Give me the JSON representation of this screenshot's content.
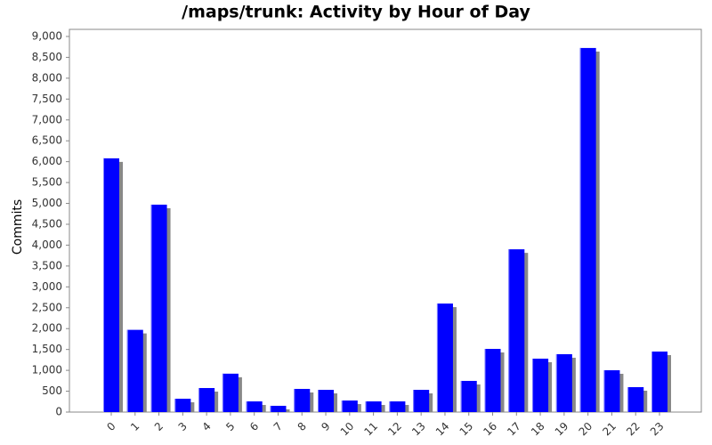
{
  "chart_data": {
    "type": "bar",
    "title": "/maps/trunk: Activity by Hour of Day",
    "y_label": "Commits",
    "categories": [
      "0",
      "1",
      "2",
      "3",
      "4",
      "5",
      "6",
      "7",
      "8",
      "9",
      "10",
      "11",
      "12",
      "13",
      "14",
      "15",
      "16",
      "17",
      "18",
      "19",
      "20",
      "21",
      "22",
      "23"
    ],
    "values": [
      6080,
      1970,
      4970,
      320,
      576,
      920,
      256,
      150,
      555,
      533,
      277,
      256,
      256,
      533,
      2600,
      747,
      1514,
      3900,
      1280,
      1387,
      8724,
      1002,
      597,
      1450
    ],
    "color": "#0000ff",
    "shadow_color": "#888888",
    "ylim": [
      0,
      9170
    ],
    "yticks": [
      0,
      500,
      {
        "value": 1000,
        "label": "1,000"
      },
      {
        "value": 1500,
        "label": "1,500"
      },
      {
        "value": 2000,
        "label": "2,000"
      },
      {
        "value": 2500,
        "label": "2,500"
      },
      {
        "value": 3000,
        "label": "3,000"
      },
      {
        "value": 3500,
        "label": "3,500"
      },
      {
        "value": 4000,
        "label": "4,000"
      },
      {
        "value": 4500,
        "label": "4,500"
      },
      {
        "value": 5000,
        "label": "5,000"
      },
      {
        "value": 5500,
        "label": "5,500"
      },
      {
        "value": 6000,
        "label": "6,000"
      },
      {
        "value": 6500,
        "label": "6,500"
      },
      {
        "value": 7000,
        "label": "7,000"
      },
      {
        "value": 7500,
        "label": "7,500"
      },
      {
        "value": 8000,
        "label": "8,000"
      },
      {
        "value": 8500,
        "label": "8,500"
      },
      {
        "value": 9000,
        "label": "9,000"
      }
    ]
  }
}
